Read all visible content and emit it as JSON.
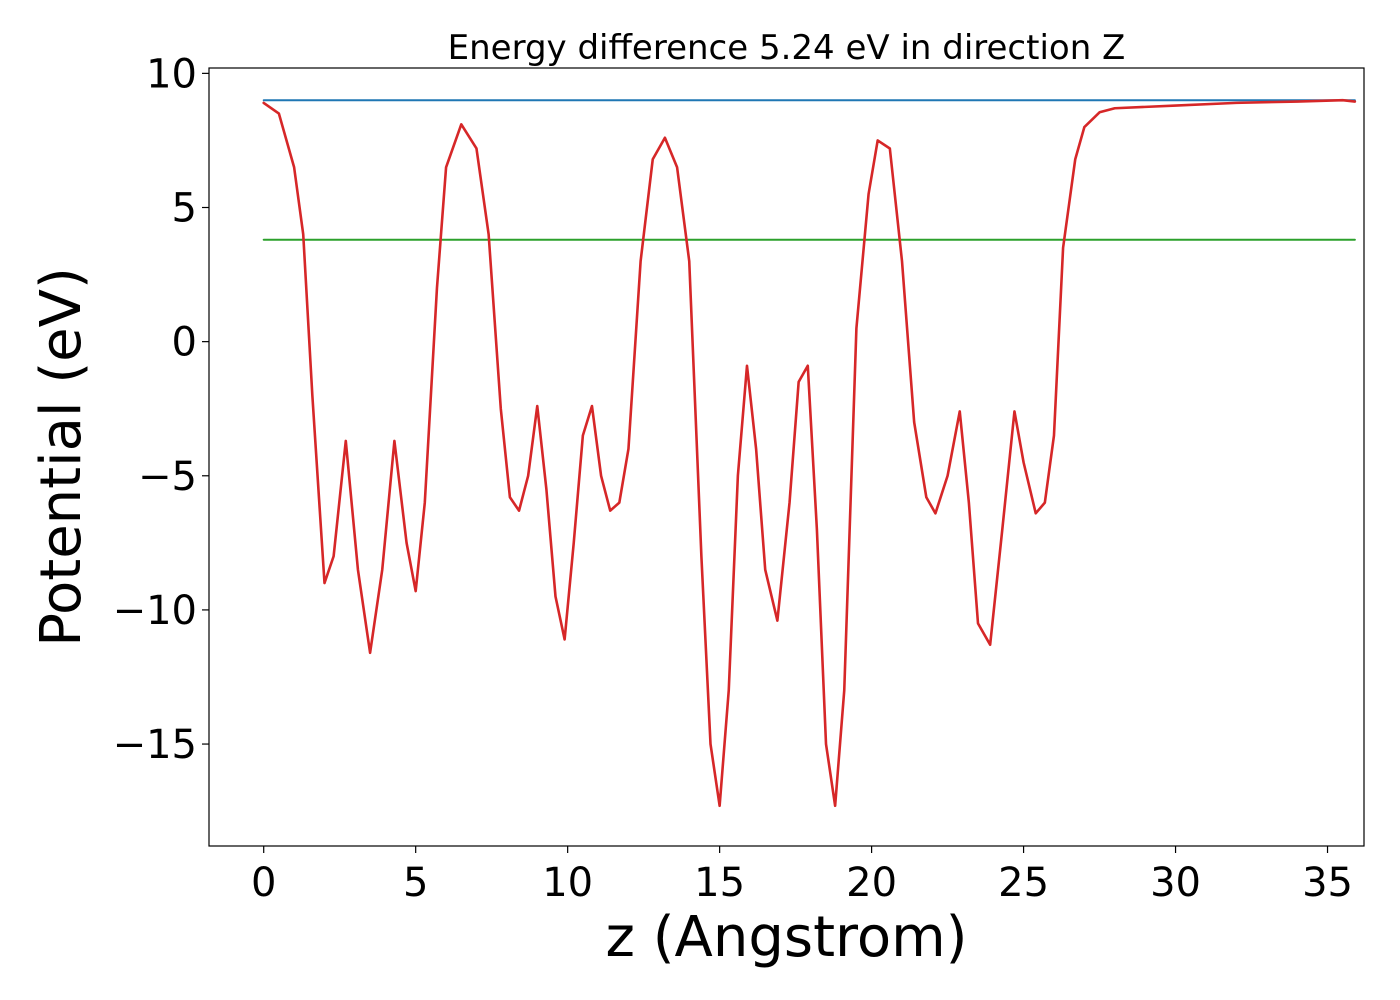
{
  "chart_data": {
    "type": "line",
    "title": "Energy difference 5.24 eV in direction Z",
    "xlabel": "z (Angstrom)",
    "ylabel": "Potential (eV)",
    "xlim": [
      -1.8,
      36.2
    ],
    "ylim": [
      -18.8,
      10.2
    ],
    "xticks": [
      0,
      5,
      10,
      15,
      20,
      25,
      30,
      35
    ],
    "xtick_labels": [
      "0",
      "5",
      "10",
      "15",
      "20",
      "25",
      "30",
      "35"
    ],
    "yticks": [
      10,
      5,
      0,
      -5,
      -10,
      -15
    ],
    "ytick_labels": [
      "10",
      "5",
      "0",
      "−5",
      "−10",
      "−15"
    ],
    "grid": false,
    "series": [
      {
        "color": "#1f77b4",
        "x": [
          0,
          35.9
        ],
        "y": [
          9.0,
          9.0
        ]
      },
      {
        "color": "#2ca02c",
        "x": [
          0,
          35.9
        ],
        "y": [
          3.8,
          3.8
        ]
      },
      {
        "color": "#d62728",
        "x": [
          0,
          0.5,
          1.0,
          1.3,
          1.6,
          2.0,
          2.3,
          2.7,
          3.1,
          3.5,
          3.9,
          4.3,
          4.7,
          5.0,
          5.3,
          5.7,
          6.0,
          6.5,
          7.0,
          7.4,
          7.8,
          8.1,
          8.4,
          8.7,
          9.0,
          9.3,
          9.6,
          9.9,
          10.2,
          10.5,
          10.8,
          11.1,
          11.4,
          11.7,
          12.0,
          12.4,
          12.8,
          13.2,
          13.6,
          14.0,
          14.4,
          14.7,
          15.0,
          15.3,
          15.6,
          15.9,
          16.2,
          16.5,
          16.9,
          17.3,
          17.6,
          17.9,
          18.2,
          18.5,
          18.8,
          19.1,
          19.5,
          19.9,
          20.2,
          20.6,
          21.0,
          21.4,
          21.8,
          22.1,
          22.5,
          22.9,
          23.2,
          23.5,
          23.9,
          24.3,
          24.7,
          25.0,
          25.4,
          25.7,
          26.0,
          26.3,
          26.7,
          27.0,
          27.5,
          28.0,
          30.0,
          32.0,
          34.0,
          35.5,
          35.9
        ],
        "y": [
          8.9,
          8.5,
          6.5,
          4.0,
          -2.0,
          -9.0,
          -8.0,
          -3.7,
          -8.5,
          -11.6,
          -8.5,
          -3.7,
          -7.5,
          -9.3,
          -6.0,
          2.0,
          6.5,
          8.1,
          7.2,
          4.0,
          -2.5,
          -5.8,
          -6.3,
          -5.0,
          -2.4,
          -5.5,
          -9.5,
          -11.1,
          -7.5,
          -3.5,
          -2.4,
          -5.0,
          -6.3,
          -6.0,
          -4.0,
          3.0,
          6.8,
          7.6,
          6.5,
          3.0,
          -8.0,
          -15.0,
          -17.3,
          -13.0,
          -5.0,
          -0.9,
          -4.0,
          -8.5,
          -10.4,
          -6.0,
          -1.5,
          -0.9,
          -7.0,
          -15.0,
          -17.3,
          -13.0,
          0.5,
          5.5,
          7.5,
          7.2,
          3.0,
          -3.0,
          -5.8,
          -6.4,
          -5.0,
          -2.6,
          -6.0,
          -10.5,
          -11.3,
          -7.0,
          -2.6,
          -4.5,
          -6.4,
          -6.0,
          -3.5,
          3.5,
          6.8,
          8.0,
          8.55,
          8.7,
          8.8,
          8.9,
          8.95,
          9.0,
          8.95
        ]
      }
    ]
  }
}
